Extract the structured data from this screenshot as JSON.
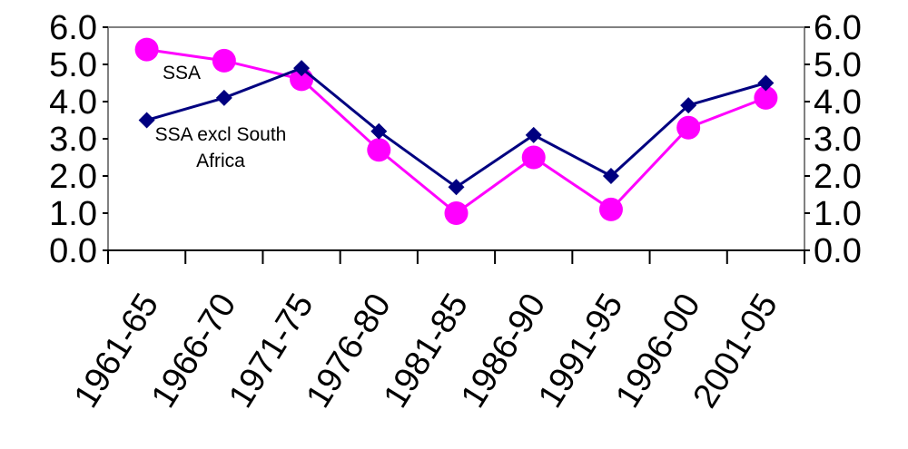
{
  "chart_data": {
    "type": "line",
    "categories": [
      "1961-65",
      "1966-70",
      "1971-75",
      "1976-80",
      "1981-85",
      "1986-90",
      "1991-95",
      "1996-00",
      "2001-05"
    ],
    "ylim": [
      0,
      6
    ],
    "yticks": [
      "0.0",
      "1.0",
      "2.0",
      "3.0",
      "4.0",
      "5.0",
      "6.0"
    ],
    "secondary_yticks": [
      "0.0",
      "1.0",
      "2.0",
      "3.0",
      "4.0",
      "5.0",
      "6.0"
    ],
    "grid": false,
    "series": [
      {
        "name": "SSA",
        "color": "#ff00ff",
        "marker": "circle",
        "values": [
          5.4,
          5.1,
          4.6,
          2.7,
          1.0,
          2.5,
          1.1,
          3.3,
          4.1
        ]
      },
      {
        "name": "SSA excl South Africa",
        "name_lines": [
          "SSA excl South",
          "Africa"
        ],
        "color": "#000080",
        "marker": "diamond",
        "values": [
          3.5,
          4.1,
          4.9,
          3.2,
          1.7,
          3.1,
          2.0,
          3.9,
          4.5
        ]
      }
    ]
  }
}
